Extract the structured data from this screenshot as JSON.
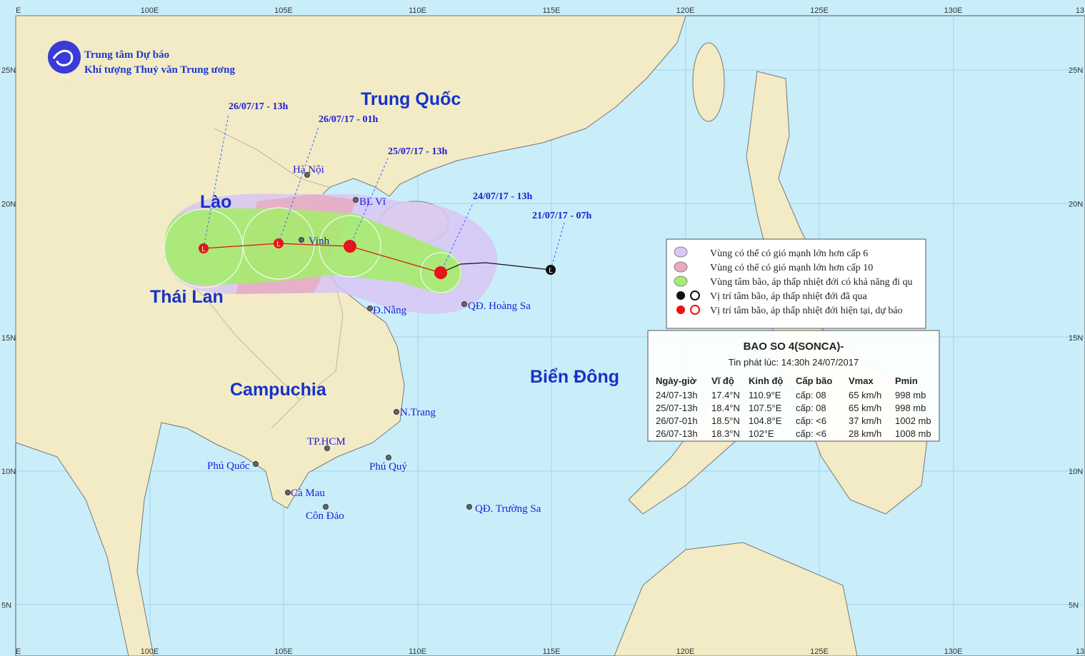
{
  "header": {
    "org_line1": "Trung tâm Dự báo",
    "org_line2": "Khí tượng Thuỷ văn Trung ương",
    "logo_text": "KTVN"
  },
  "map": {
    "lon_labels": [
      "E",
      "100E",
      "105E",
      "110E",
      "115E",
      "120E",
      "125E",
      "130E",
      "13"
    ],
    "lat_labels": [
      "25N",
      "20N",
      "15N",
      "10N",
      "5N"
    ],
    "countries": [
      "Trung Quốc",
      "Lào",
      "Thái Lan",
      "Campuchia",
      "Biển Đông"
    ],
    "places": [
      "Hà Nội",
      "BL Vĩ",
      "Vinh",
      "Đ.Nẵng",
      "QĐ. Hoàng Sa",
      "N.Trang",
      "TP.HCM",
      "Phú Quốc",
      "Phú Quý",
      "Cà Mau",
      "Côn Đảo",
      "QĐ. Trường Sa"
    ],
    "track_labels": [
      "26/07/17 - 13h",
      "26/07/17 - 01h",
      "25/07/17 - 13h",
      "24/07/17 - 13h",
      "21/07/17 - 07h"
    ]
  },
  "legend": {
    "items": [
      "Vùng có thể có gió mạnh lớn hơn cấp 6",
      "Vùng có thể có gió mạnh lớn hơn cấp 10",
      "Vùng tâm bão, áp thấp nhiệt đới có khả năng đi qu",
      "Vị trí tâm bão, áp thấp nhiệt đới đã qua",
      "Vị trí tâm bão, áp thấp nhiệt đới hiện tại, dự báo"
    ]
  },
  "info": {
    "title": "BAO SO 4(SONCA)-",
    "issued": "Tin phát lúc: 14:30h 24/07/2017",
    "columns": [
      "Ngày-giờ",
      "Vĩ độ",
      "Kinh độ",
      "Cấp bão",
      "Vmax",
      "Pmin"
    ],
    "rows": [
      [
        "24/07-13h",
        "17.4°N",
        "110.9°E",
        "cấp: 08",
        "65 km/h",
        "998 mb"
      ],
      [
        "25/07-13h",
        "18.4°N",
        "107.5°E",
        "cấp: 08",
        "65 km/h",
        "998 mb"
      ],
      [
        "26/07-01h",
        "18.5°N",
        "104.8°E",
        "cấp: <6",
        "37 km/h",
        "1002 mb"
      ],
      [
        "26/07-13h",
        "18.3°N",
        "102°E",
        "cấp: <6",
        "28 km/h",
        "1008 mb"
      ]
    ]
  }
}
